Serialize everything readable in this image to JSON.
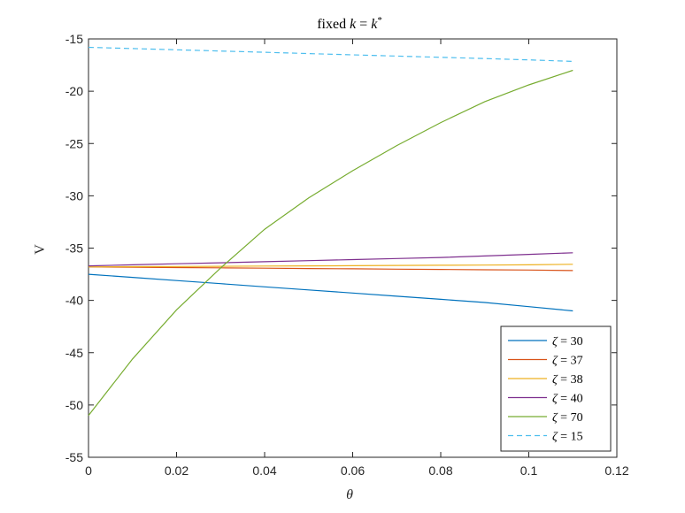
{
  "chart_data": {
    "type": "line",
    "title": "fixed k = k*",
    "title_parts": {
      "pre": "fixed ",
      "k1": "k",
      "eq": " = ",
      "k2": "k",
      "sup": "*"
    },
    "xlabel": "θ",
    "ylabel": "V",
    "xlim": [
      0,
      0.12
    ],
    "ylim": [
      -55,
      -15
    ],
    "xticks": [
      0,
      0.02,
      0.04,
      0.06,
      0.08,
      0.1,
      0.12
    ],
    "xtick_labels": [
      "0",
      "0.02",
      "0.04",
      "0.06",
      "0.08",
      "0.1",
      "0.12"
    ],
    "yticks": [
      -55,
      -50,
      -45,
      -40,
      -35,
      -30,
      -25,
      -20,
      -15
    ],
    "ytick_labels": [
      "-55",
      "-50",
      "-45",
      "-40",
      "-35",
      "-30",
      "-25",
      "-20",
      "-15"
    ],
    "grid": false,
    "legend_position": "bottom-right",
    "x": [
      0,
      0.01,
      0.02,
      0.03,
      0.04,
      0.05,
      0.06,
      0.07,
      0.08,
      0.09,
      0.1,
      0.11
    ],
    "series": [
      {
        "name": "ζ = 30",
        "label_var": "ζ",
        "label_val": "30",
        "color": "#0072BD",
        "dash": "solid",
        "values": [
          -37.5,
          -37.8,
          -38.1,
          -38.4,
          -38.7,
          -39.0,
          -39.3,
          -39.6,
          -39.9,
          -40.2,
          -40.6,
          -41.0
        ]
      },
      {
        "name": "ζ = 37",
        "label_var": "ζ",
        "label_val": "37",
        "color": "#D95319",
        "dash": "solid",
        "values": [
          -36.8,
          -36.83,
          -36.86,
          -36.89,
          -36.92,
          -36.95,
          -36.98,
          -37.01,
          -37.04,
          -37.07,
          -37.1,
          -37.15
        ]
      },
      {
        "name": "ζ = 38",
        "label_var": "ζ",
        "label_val": "38",
        "color": "#EDB120",
        "dash": "solid",
        "values": [
          -36.8,
          -36.78,
          -36.76,
          -36.74,
          -36.72,
          -36.7,
          -36.68,
          -36.66,
          -36.64,
          -36.62,
          -36.6,
          -36.55
        ]
      },
      {
        "name": "ζ = 40",
        "label_var": "ζ",
        "label_val": "40",
        "color": "#7E2F8E",
        "dash": "solid",
        "values": [
          -36.7,
          -36.6,
          -36.5,
          -36.4,
          -36.3,
          -36.2,
          -36.1,
          -36.0,
          -35.9,
          -35.75,
          -35.6,
          -35.45
        ]
      },
      {
        "name": "ζ = 70",
        "label_var": "ζ",
        "label_val": "70",
        "color": "#77AC30",
        "dash": "solid",
        "values": [
          -51.0,
          -45.6,
          -40.9,
          -36.9,
          -33.2,
          -30.2,
          -27.6,
          -25.2,
          -23.0,
          -21.0,
          -19.4,
          -18.0
        ]
      },
      {
        "name": "ζ = 15",
        "label_var": "ζ",
        "label_val": "15",
        "color": "#4DBEEE",
        "dash": "dashed",
        "values": [
          -15.8,
          -15.92,
          -16.04,
          -16.16,
          -16.28,
          -16.4,
          -16.52,
          -16.64,
          -16.76,
          -16.88,
          -17.0,
          -17.15
        ]
      }
    ]
  }
}
